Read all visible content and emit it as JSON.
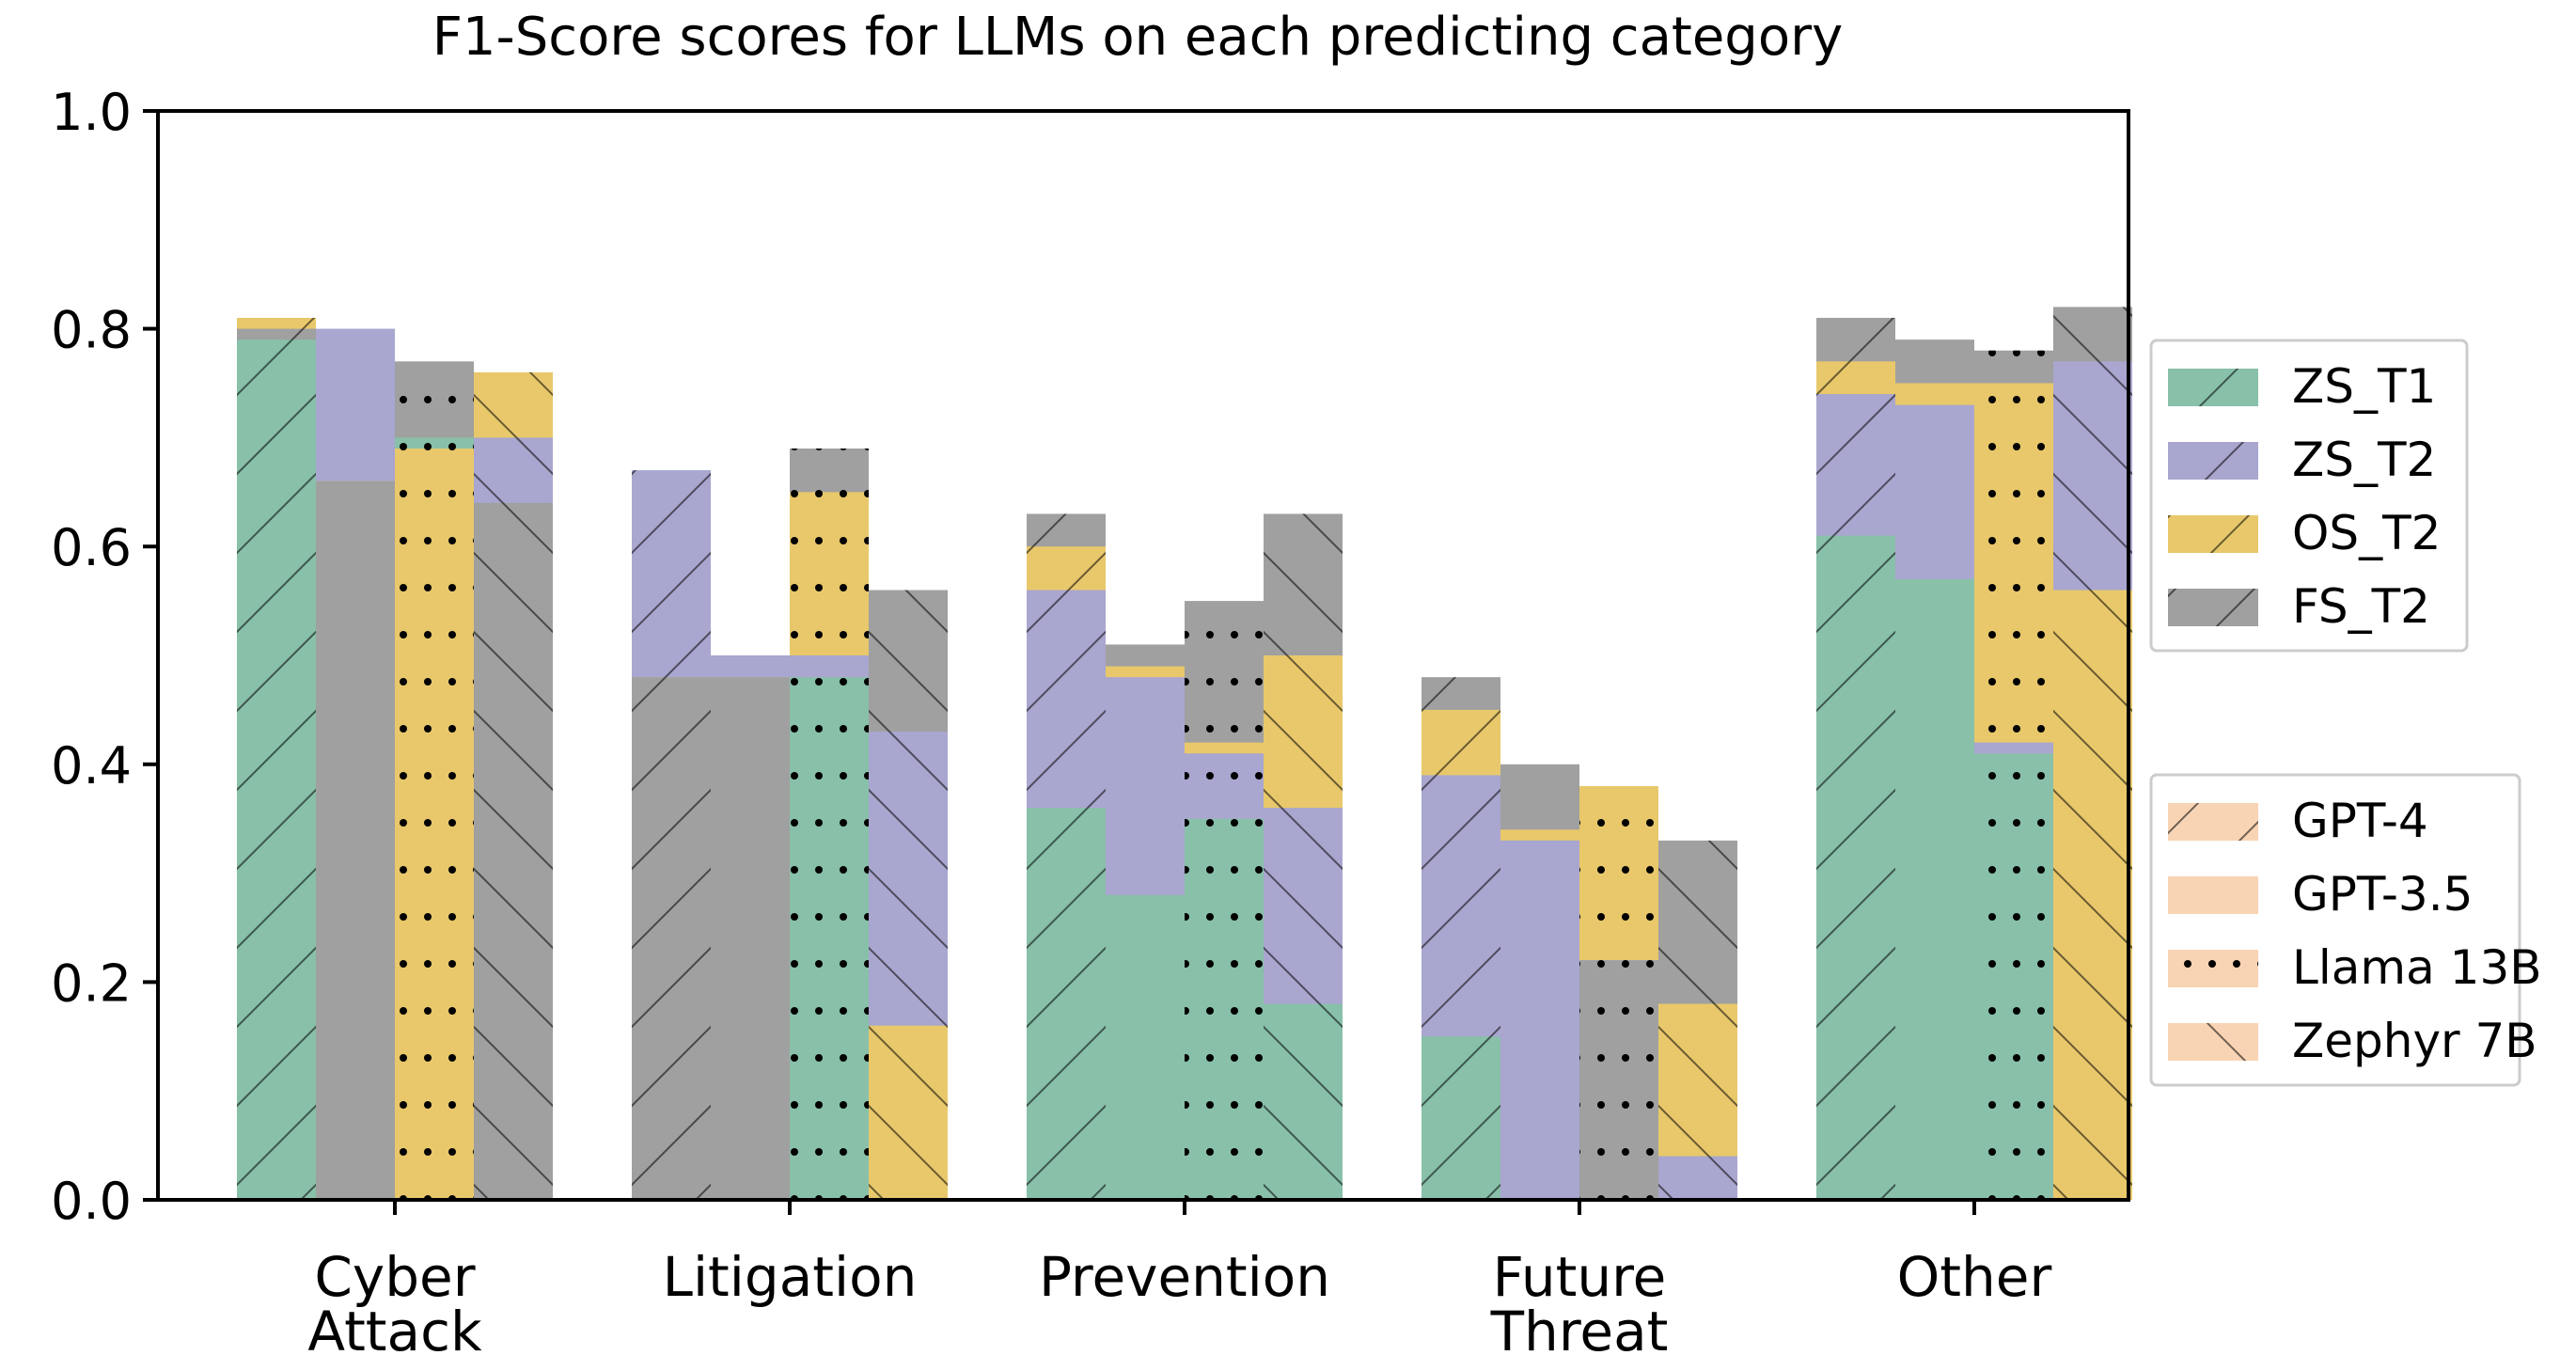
{
  "chart_data": {
    "type": "bar",
    "subtype": "overlaid-per-model",
    "title": "F1-Score scores for LLMs on each predicting category",
    "xlabel": "",
    "ylabel": "",
    "ylim": [
      0.0,
      1.0
    ],
    "yticks": [
      "0.0",
      "0.2",
      "0.4",
      "0.6",
      "0.8",
      "1.0"
    ],
    "categories": [
      "Cyber\nAttack",
      "Litigation",
      "Prevention",
      "Future\nThreat",
      "Other"
    ],
    "models": [
      "GPT-4",
      "GPT-3.5",
      "Llama 13B",
      "Zephyr 7B"
    ],
    "series": [
      {
        "name": "ZS_T1",
        "color": "#88c0a9",
        "values": [
          [
            0.79,
            0.66,
            0.7,
            0.64
          ],
          [
            0.67,
            0.48,
            0.48,
            0.16
          ],
          [
            0.36,
            0.28,
            0.35,
            0.18
          ],
          [
            0.15,
            0.33,
            0.22,
            0.04
          ],
          [
            0.61,
            0.57,
            0.41,
            0.56
          ]
        ]
      },
      {
        "name": "ZS_T2",
        "color": "#a9a6cf",
        "values": [
          [
            0.81,
            0.8,
            0.69,
            0.7
          ],
          [
            0.67,
            0.5,
            0.5,
            0.43
          ],
          [
            0.56,
            0.48,
            0.41,
            0.36
          ],
          [
            0.39,
            0.33,
            0.22,
            0.04
          ],
          [
            0.74,
            0.73,
            0.42,
            0.77
          ]
        ]
      },
      {
        "name": "OS_T2",
        "color": "#e8c86b",
        "values": [
          [
            0.81,
            0.66,
            0.69,
            0.76
          ],
          [
            0.48,
            0.48,
            0.65,
            0.16
          ],
          [
            0.6,
            0.49,
            0.42,
            0.5
          ],
          [
            0.45,
            0.34,
            0.38,
            0.18
          ],
          [
            0.77,
            0.75,
            0.75,
            0.56
          ]
        ]
      },
      {
        "name": "FS_T2",
        "color": "#a0a0a0",
        "values": [
          [
            0.8,
            0.66,
            0.77,
            0.64
          ],
          [
            0.48,
            0.48,
            0.69,
            0.56
          ],
          [
            0.63,
            0.51,
            0.55,
            0.63
          ],
          [
            0.48,
            0.4,
            0.22,
            0.33
          ],
          [
            0.81,
            0.79,
            0.78,
            0.82
          ]
        ]
      }
    ],
    "legend_series": [
      "ZS_T1",
      "ZS_T2",
      "OS_T2",
      "FS_T2"
    ],
    "legend_models": [
      "GPT-4",
      "GPT-3.5",
      "Llama 13B",
      "Zephyr 7B"
    ],
    "model_legend_color": "#f9d4b4",
    "grid": false,
    "legend_position": "right"
  }
}
